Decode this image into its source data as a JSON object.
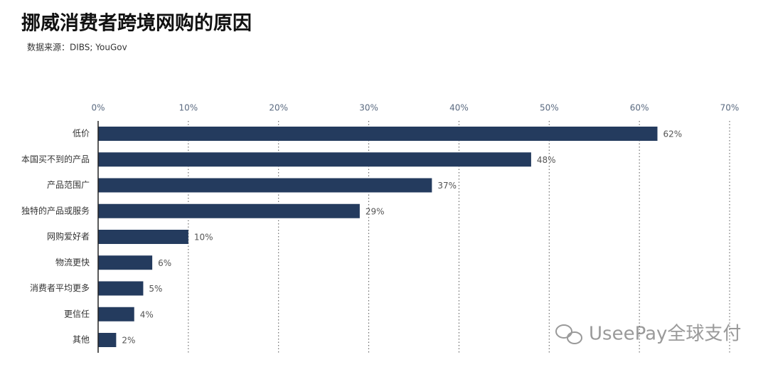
{
  "chart_data": {
    "type": "bar",
    "orientation": "horizontal",
    "title": "挪威消费者跨境网购的原因",
    "subtitle": "数据来源：DIBS; YouGov",
    "categories": [
      "低价",
      "本国买不到的产品",
      "产品范围广",
      "独特的产品或服务",
      "网购爱好者",
      "物流更快",
      "消费者平均更多",
      "更信任",
      "其他"
    ],
    "values": [
      62,
      48,
      37,
      29,
      10,
      6,
      5,
      4,
      2
    ],
    "value_labels": [
      "62%",
      "48%",
      "37%",
      "29%",
      "10%",
      "6%",
      "5%",
      "4%",
      "2%"
    ],
    "color": "#243b5e",
    "xlim": [
      0,
      70
    ],
    "xticks": [
      {
        "value": 0,
        "label": "0%"
      },
      {
        "value": 10,
        "label": "10%"
      },
      {
        "value": 20,
        "label": "20%"
      },
      {
        "value": 30,
        "label": "30%"
      },
      {
        "value": 40,
        "label": "40%"
      },
      {
        "value": 50,
        "label": "50%"
      },
      {
        "value": 60,
        "label": "60%"
      },
      {
        "value": 70,
        "label": "70%"
      }
    ],
    "grid": true,
    "watermark": "UseePay全球支付"
  }
}
